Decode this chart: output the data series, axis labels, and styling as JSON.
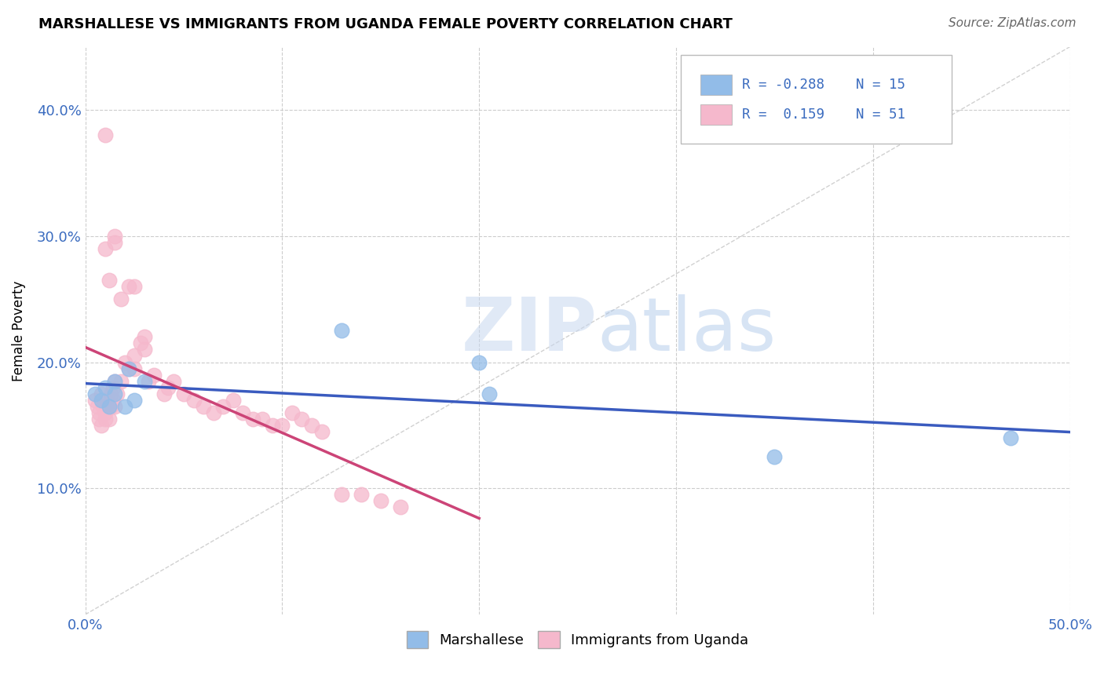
{
  "title": "MARSHALLESE VS IMMIGRANTS FROM UGANDA FEMALE POVERTY CORRELATION CHART",
  "source": "Source: ZipAtlas.com",
  "ylabel_label": "Female Poverty",
  "xlim": [
    0.0,
    0.5
  ],
  "ylim": [
    0.0,
    0.45
  ],
  "xtick_positions": [
    0.0,
    0.1,
    0.2,
    0.3,
    0.4,
    0.5
  ],
  "xtick_labels": [
    "0.0%",
    "",
    "",
    "",
    "",
    "50.0%"
  ],
  "ytick_positions": [
    0.1,
    0.2,
    0.3,
    0.4
  ],
  "ytick_labels": [
    "10.0%",
    "20.0%",
    "30.0%",
    "40.0%"
  ],
  "grid_color": "#cccccc",
  "watermark_zip": "ZIP",
  "watermark_atlas": "atlas",
  "legend_r_blue": "-0.288",
  "legend_n_blue": "15",
  "legend_r_pink": " 0.159",
  "legend_n_pink": "51",
  "blue_color": "#92bce8",
  "pink_color": "#f5b8cc",
  "blue_line_color": "#3a5bbf",
  "pink_line_color": "#cc4477",
  "diagonal_color": "#cccccc",
  "blue_scatter_x": [
    0.005,
    0.008,
    0.01,
    0.012,
    0.015,
    0.015,
    0.02,
    0.022,
    0.025,
    0.03,
    0.13,
    0.2,
    0.205,
    0.35,
    0.47
  ],
  "blue_scatter_y": [
    0.175,
    0.17,
    0.18,
    0.165,
    0.185,
    0.175,
    0.165,
    0.195,
    0.17,
    0.185,
    0.225,
    0.2,
    0.175,
    0.125,
    0.14
  ],
  "pink_scatter_x": [
    0.005,
    0.006,
    0.007,
    0.007,
    0.008,
    0.008,
    0.009,
    0.01,
    0.01,
    0.011,
    0.012,
    0.012,
    0.013,
    0.013,
    0.014,
    0.014,
    0.015,
    0.015,
    0.016,
    0.018,
    0.02,
    0.022,
    0.025,
    0.025,
    0.028,
    0.03,
    0.03,
    0.032,
    0.035,
    0.04,
    0.042,
    0.045,
    0.05,
    0.055,
    0.06,
    0.065,
    0.07,
    0.075,
    0.08,
    0.085,
    0.09,
    0.095,
    0.1,
    0.105,
    0.11,
    0.115,
    0.12,
    0.13,
    0.14,
    0.15,
    0.16
  ],
  "pink_scatter_y": [
    0.17,
    0.165,
    0.16,
    0.155,
    0.175,
    0.15,
    0.165,
    0.16,
    0.155,
    0.17,
    0.165,
    0.155,
    0.175,
    0.165,
    0.18,
    0.17,
    0.185,
    0.165,
    0.175,
    0.185,
    0.2,
    0.195,
    0.205,
    0.195,
    0.215,
    0.22,
    0.21,
    0.185,
    0.19,
    0.175,
    0.18,
    0.185,
    0.175,
    0.17,
    0.165,
    0.16,
    0.165,
    0.17,
    0.16,
    0.155,
    0.155,
    0.15,
    0.15,
    0.16,
    0.155,
    0.15,
    0.145,
    0.095,
    0.095,
    0.09,
    0.085
  ],
  "pink_outliers_x": [
    0.01,
    0.01,
    0.012,
    0.015,
    0.015,
    0.018,
    0.022,
    0.025
  ],
  "pink_outliers_y": [
    0.38,
    0.29,
    0.265,
    0.3,
    0.295,
    0.25,
    0.26,
    0.26
  ]
}
